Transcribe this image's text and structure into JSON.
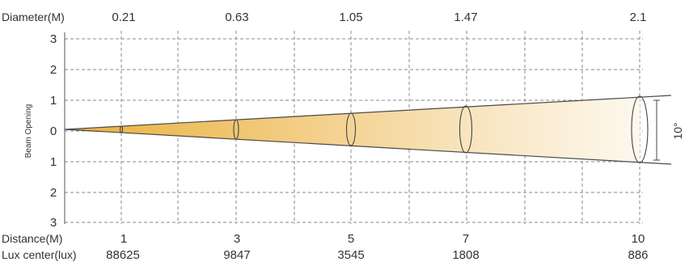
{
  "labels": {
    "diameter": "Diameter(M)",
    "distance": "Distance(M)",
    "lux": "Lux center(lux)",
    "y_axis": "Beam Opening",
    "angle": "10°"
  },
  "diameters": [
    "0.21",
    "0.63",
    "1.05",
    "1.47",
    "2.1"
  ],
  "distances": [
    "1",
    "3",
    "5",
    "7",
    "10"
  ],
  "lux_values": [
    "88625",
    "9847",
    "3545",
    "1808",
    "886"
  ],
  "y_ticks": [
    "3",
    "2",
    "1",
    "0",
    "1",
    "2",
    "3"
  ],
  "colors": {
    "beam_start": "#e8b23e",
    "beam_end": "#fbf3e3",
    "grid": "#8a8a8a"
  }
}
